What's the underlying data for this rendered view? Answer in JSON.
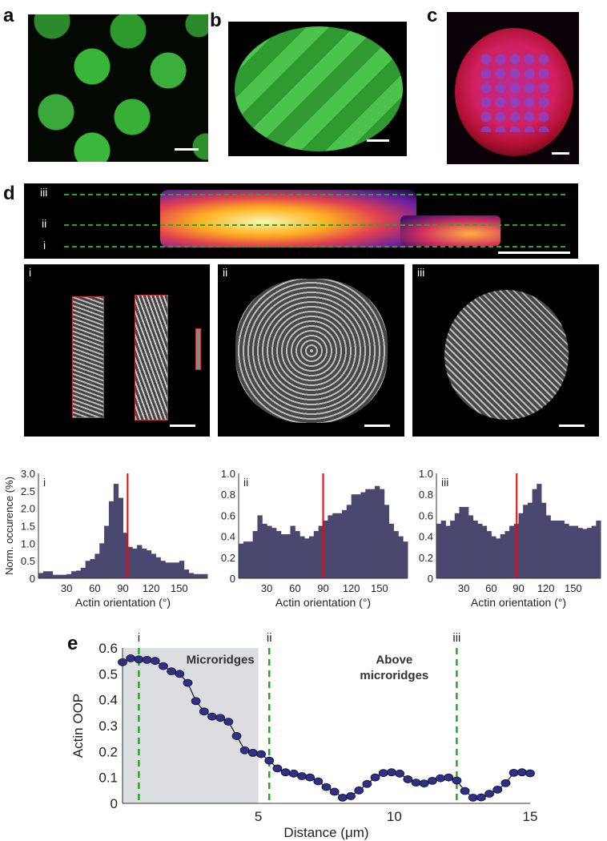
{
  "panel_labels": {
    "a": "a",
    "b": "b",
    "c": "c",
    "d": "d",
    "e": "e"
  },
  "d_strip": {
    "levels": [
      "iii",
      "ii",
      "i"
    ]
  },
  "d_images": {
    "labels": [
      "i",
      "ii",
      "iii"
    ]
  },
  "colors": {
    "hist": "#4b4870",
    "red": "#ff0000",
    "green": "#22aa22",
    "marker": "#2e2e8c",
    "shade": "#dcdde0"
  },
  "chart_data": [
    {
      "type": "bar",
      "title": "i",
      "xlabel": "Actin orientation (°)",
      "ylabel": "Norm. occurence (%)",
      "xlim": [
        0,
        180
      ],
      "ylim": [
        0,
        3.0
      ],
      "xticks": [
        "30",
        "60",
        "90",
        "120",
        "150"
      ],
      "yticks": [
        "0",
        "0.5",
        "1.0",
        "1.5",
        "2.0",
        "2.5",
        "3.0"
      ],
      "marker_line": 95,
      "values": [
        0.15,
        0.2,
        0.2,
        0.1,
        0.1,
        0.1,
        0.12,
        0.2,
        0.22,
        0.3,
        0.5,
        0.55,
        0.7,
        1.0,
        1.5,
        2.2,
        2.7,
        2.3,
        1.3,
        0.9,
        0.85,
        0.95,
        0.85,
        0.8,
        0.7,
        0.6,
        0.5,
        0.45,
        0.45,
        0.45,
        0.5,
        0.25,
        0.15,
        0.12,
        0.12,
        0.12
      ]
    },
    {
      "type": "bar",
      "title": "ii",
      "xlabel": "Actin orientation (°)",
      "ylabel": "",
      "xlim": [
        0,
        180
      ],
      "ylim": [
        0,
        1.0
      ],
      "xticks": [
        "30",
        "60",
        "90",
        "120",
        "150"
      ],
      "yticks": [
        "0",
        "0.2",
        "0.4",
        "0.6",
        "0.8",
        "1.0"
      ],
      "marker_line": 90,
      "values": [
        0.33,
        0.35,
        0.35,
        0.45,
        0.6,
        0.52,
        0.5,
        0.48,
        0.45,
        0.42,
        0.42,
        0.5,
        0.45,
        0.4,
        0.38,
        0.4,
        0.45,
        0.5,
        0.55,
        0.6,
        0.62,
        0.62,
        0.65,
        0.7,
        0.8,
        0.8,
        0.82,
        0.85,
        0.85,
        0.88,
        0.85,
        0.7,
        0.52,
        0.45,
        0.4,
        0.35
      ]
    },
    {
      "type": "bar",
      "title": "iii",
      "xlabel": "Actin orientation (°)",
      "ylabel": "",
      "xlim": [
        0,
        180
      ],
      "ylim": [
        0,
        1.0
      ],
      "xticks": [
        "30",
        "60",
        "90",
        "120",
        "150"
      ],
      "yticks": [
        "0",
        "0.2",
        "0.4",
        "0.6",
        "0.8",
        "1.0"
      ],
      "marker_line": 88,
      "values": [
        0.52,
        0.55,
        0.5,
        0.55,
        0.62,
        0.68,
        0.68,
        0.6,
        0.55,
        0.52,
        0.5,
        0.45,
        0.4,
        0.38,
        0.42,
        0.45,
        0.5,
        0.52,
        0.62,
        0.7,
        0.72,
        0.85,
        0.9,
        0.72,
        0.6,
        0.55,
        0.55,
        0.55,
        0.52,
        0.5,
        0.5,
        0.48,
        0.47,
        0.48,
        0.5,
        0.55
      ]
    },
    {
      "type": "line",
      "title": "",
      "xlabel": "Distance (μm)",
      "ylabel": "Actin OOP",
      "xlim": [
        0,
        15
      ],
      "ylim": [
        0,
        0.6
      ],
      "xticks": [
        "5",
        "10",
        "15"
      ],
      "yticks": [
        "0",
        "0.1",
        "0.2",
        "0.3",
        "0.4",
        "0.5",
        "0.6"
      ],
      "shaded_region": {
        "x": [
          0,
          5
        ],
        "label": "Microridges"
      },
      "annotation": "Above microridges",
      "vlines": [
        {
          "x": 0.6,
          "label": "i"
        },
        {
          "x": 5.4,
          "label": "ii"
        },
        {
          "x": 12.3,
          "label": "iii"
        }
      ],
      "x_step": 0.3,
      "values": [
        0.545,
        0.56,
        0.556,
        0.554,
        0.55,
        0.53,
        0.51,
        0.5,
        0.465,
        0.395,
        0.355,
        0.335,
        0.33,
        0.315,
        0.26,
        0.205,
        0.195,
        0.19,
        0.165,
        0.135,
        0.12,
        0.115,
        0.105,
        0.1,
        0.085,
        0.063,
        0.045,
        0.022,
        0.028,
        0.05,
        0.075,
        0.1,
        0.117,
        0.12,
        0.115,
        0.093,
        0.08,
        0.077,
        0.087,
        0.097,
        0.1,
        0.088,
        0.048,
        0.022,
        0.023,
        0.037,
        0.053,
        0.078,
        0.118,
        0.12,
        0.116
      ]
    }
  ]
}
